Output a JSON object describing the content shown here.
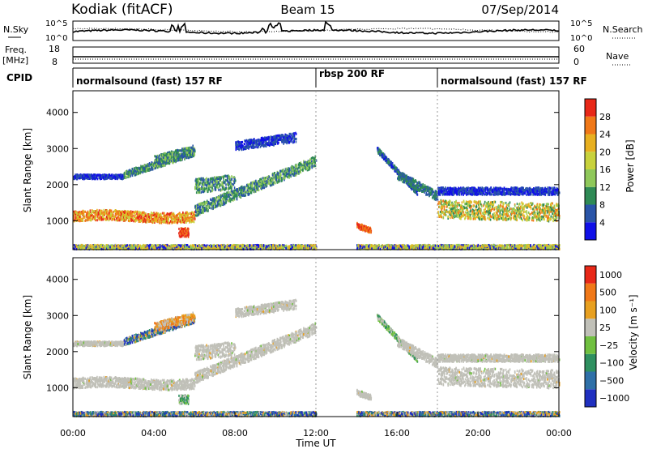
{
  "header": {
    "station": "Kodiak (fitACF)",
    "beam": "Beam 15",
    "date": "07/Sep/2014"
  },
  "noise_panel": {
    "left_label": "N.Sky",
    "right_label": "N.Search",
    "ticks": [
      "10^5",
      "10^0"
    ]
  },
  "freq_panel": {
    "left_label_1": "Freq.",
    "left_label_2": "[MHz]",
    "right_label": "Nave",
    "left_ticks": [
      "18",
      "8"
    ],
    "right_ticks": [
      "60",
      "0"
    ]
  },
  "cpid": {
    "label": "CPID",
    "segments": [
      {
        "text": "normalsound (fast) 157 RF",
        "start_hour": 0
      },
      {
        "text": "rbsp 200 RF",
        "start_hour": 12
      },
      {
        "text": "normalsound (fast) 157 RF",
        "start_hour": 18
      }
    ]
  },
  "chart_data": [
    {
      "type": "heatmap",
      "name": "power",
      "ylabel": "Slant Range [km]",
      "xlim": [
        0,
        24
      ],
      "ylim": [
        200,
        4600
      ],
      "yticks": [
        1000,
        2000,
        3000,
        4000
      ],
      "colorbar": {
        "label": "Power [dB]",
        "range": [
          0,
          32
        ],
        "ticks": [
          "4",
          "8",
          "12",
          "16",
          "20",
          "24",
          "28"
        ]
      }
    },
    {
      "type": "heatmap",
      "name": "velocity",
      "ylabel": "Slant Range [km]",
      "xlabel": "Time UT",
      "xlim": [
        0,
        24
      ],
      "ylim": [
        200,
        4600
      ],
      "yticks": [
        1000,
        2000,
        3000,
        4000
      ],
      "xticks": [
        "00:00",
        "04:00",
        "08:00",
        "12:00",
        "16:00",
        "20:00",
        "00:00"
      ],
      "colorbar": {
        "label": "Velocity [m s⁻¹]",
        "ticks": [
          "1000",
          "500",
          "100",
          "25",
          "−25",
          "−100",
          "−500",
          "−1000"
        ]
      }
    }
  ],
  "colors": {
    "power": [
      "#1010e8",
      "#2a55a8",
      "#2f8a55",
      "#8fc85a",
      "#c8d23c",
      "#e8b020",
      "#f07818",
      "#e82818"
    ],
    "velocity": [
      "#2030c0",
      "#2f70a8",
      "#2f9060",
      "#70c040",
      "#c0c0b8",
      "#e8a020",
      "#f07818",
      "#e82818"
    ],
    "ground_scatter": "#c0c0b8"
  }
}
